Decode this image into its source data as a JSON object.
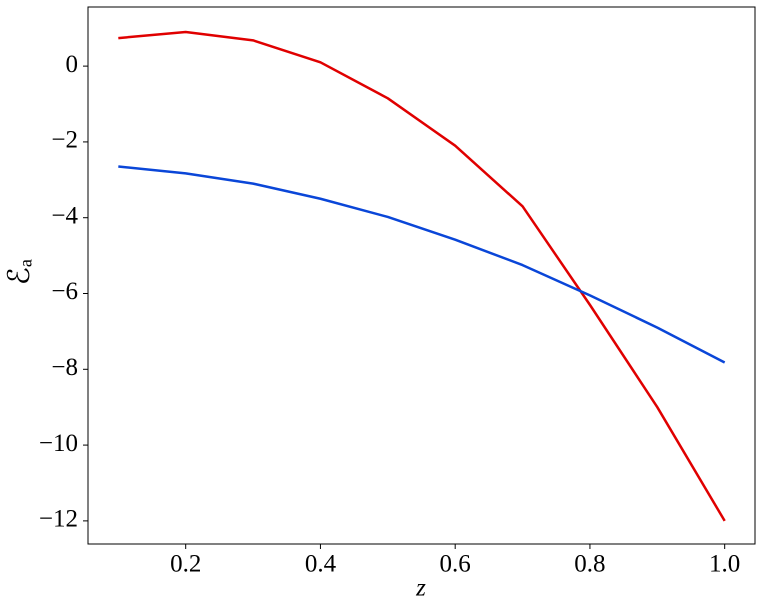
{
  "chart_data": {
    "type": "line",
    "x_label": "z",
    "y_label": "ℰₐ",
    "x": [
      0.1,
      0.2,
      0.3,
      0.4,
      0.5,
      0.6,
      0.7,
      0.8,
      0.9,
      1.0
    ],
    "series": [
      {
        "color": "#e00000",
        "values": [
          0.74,
          0.9,
          0.68,
          0.1,
          -0.85,
          -2.1,
          -3.7,
          -6.3,
          -9.0,
          -12.0
        ]
      },
      {
        "color": "#0a46d8",
        "values": [
          -2.65,
          -2.83,
          -3.1,
          -3.5,
          -3.98,
          -4.58,
          -5.25,
          -6.05,
          -6.9,
          -7.82
        ]
      }
    ],
    "xlim": [
      0.055,
      1.045
    ],
    "ylim": [
      -12.61,
      1.56
    ],
    "xticks": [
      0.2,
      0.4,
      0.6,
      0.8,
      {
        "value": 1.0,
        "label": "1.0"
      }
    ],
    "yticks": [
      0,
      {
        "value": -2,
        "label": "−2"
      },
      {
        "value": -4,
        "label": "−4"
      },
      {
        "value": -6,
        "label": "−6"
      },
      {
        "value": -8,
        "label": "−8"
      },
      {
        "value": -10,
        "label": "−10"
      },
      {
        "value": -12,
        "label": "−12"
      }
    ],
    "grid": false
  }
}
